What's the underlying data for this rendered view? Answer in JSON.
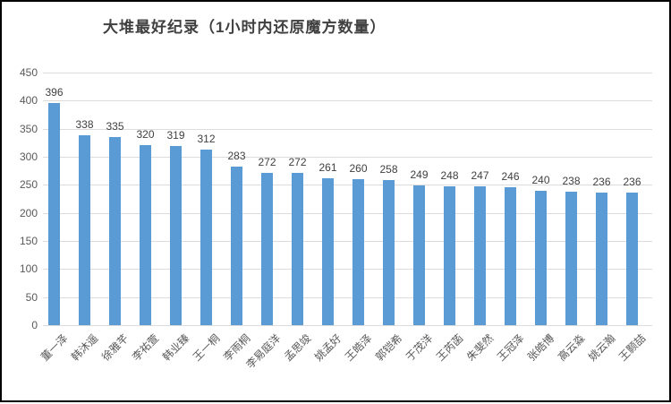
{
  "title": "大堆最好纪录（1小时内还原魔方数量）",
  "chart_data": {
    "type": "bar",
    "title": "大堆最好纪录（1小时内还原魔方数量）",
    "categories": [
      "董一泽",
      "韩沐遥",
      "徐雅芊",
      "李祐萱",
      "韩业臻",
      "王一桐",
      "李雨桐",
      "李易庭洋",
      "孟思竣",
      "姚孟好",
      "王皓泽",
      "郭铠希",
      "于茂洋",
      "王芮菡",
      "朱斐然",
      "王冠泽",
      "张皓博",
      "高云淼",
      "姚云瀚",
      "王颢喆"
    ],
    "values": [
      396,
      338,
      335,
      320,
      319,
      312,
      283,
      272,
      272,
      261,
      260,
      258,
      249,
      248,
      247,
      246,
      240,
      238,
      236,
      236
    ],
    "xlabel": "",
    "ylabel": "",
    "ylim": [
      0,
      450
    ],
    "ytick_step": 50,
    "y_ticks": [
      "0",
      "50",
      "100",
      "150",
      "200",
      "250",
      "300",
      "350",
      "400",
      "450"
    ],
    "grid": true,
    "legend": "none",
    "bar_color": "#5B9BD5",
    "value_label_color": "#404040",
    "axis_label_color": "#595959",
    "gridline_color": "#DCDCDC",
    "title_color": "#404040"
  }
}
